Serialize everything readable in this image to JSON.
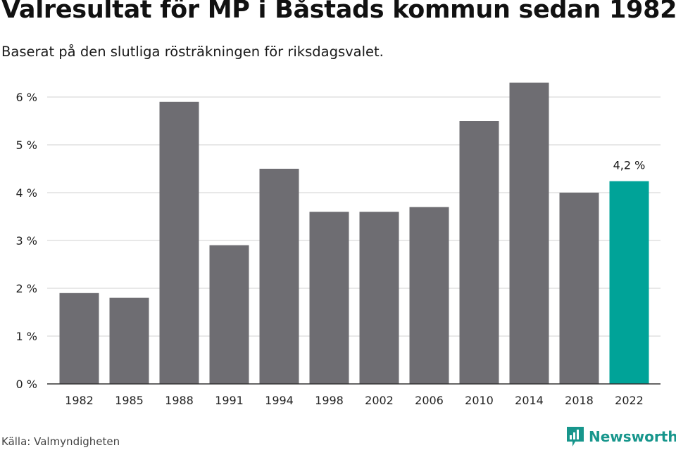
{
  "header": {
    "title": "Valresultat för MP i Båstads kommun sedan 1982",
    "subtitle": "Baserat på den slutliga rösträkningen för riksdagsvalet."
  },
  "footer": {
    "source": "Källa: Valmyndigheten",
    "brand": "Newsworthy",
    "brand_icon": "newsworthy-logo-icon"
  },
  "colors": {
    "bar": "#6e6d72",
    "highlight": "#00a398",
    "grid": "#d9d9d9",
    "axis": "#333333",
    "brand": "#17968c"
  },
  "chart_data": {
    "type": "bar",
    "categories": [
      "1982",
      "1985",
      "1988",
      "1991",
      "1994",
      "1998",
      "2002",
      "2006",
      "2010",
      "2014",
      "2018",
      "2022"
    ],
    "values": [
      1.9,
      1.8,
      5.9,
      2.9,
      4.5,
      3.6,
      3.6,
      3.7,
      5.5,
      6.3,
      4.0,
      4.24
    ],
    "y_ticks": [
      0,
      1,
      2,
      3,
      4,
      5,
      6
    ],
    "y_tick_labels": [
      "0 %",
      "1 %",
      "2 %",
      "3 %",
      "4 %",
      "5 %",
      "6 %"
    ],
    "ylim": [
      0,
      6.3
    ],
    "highlight_index": 11,
    "highlight_label": "4,2 %",
    "grid": true
  }
}
